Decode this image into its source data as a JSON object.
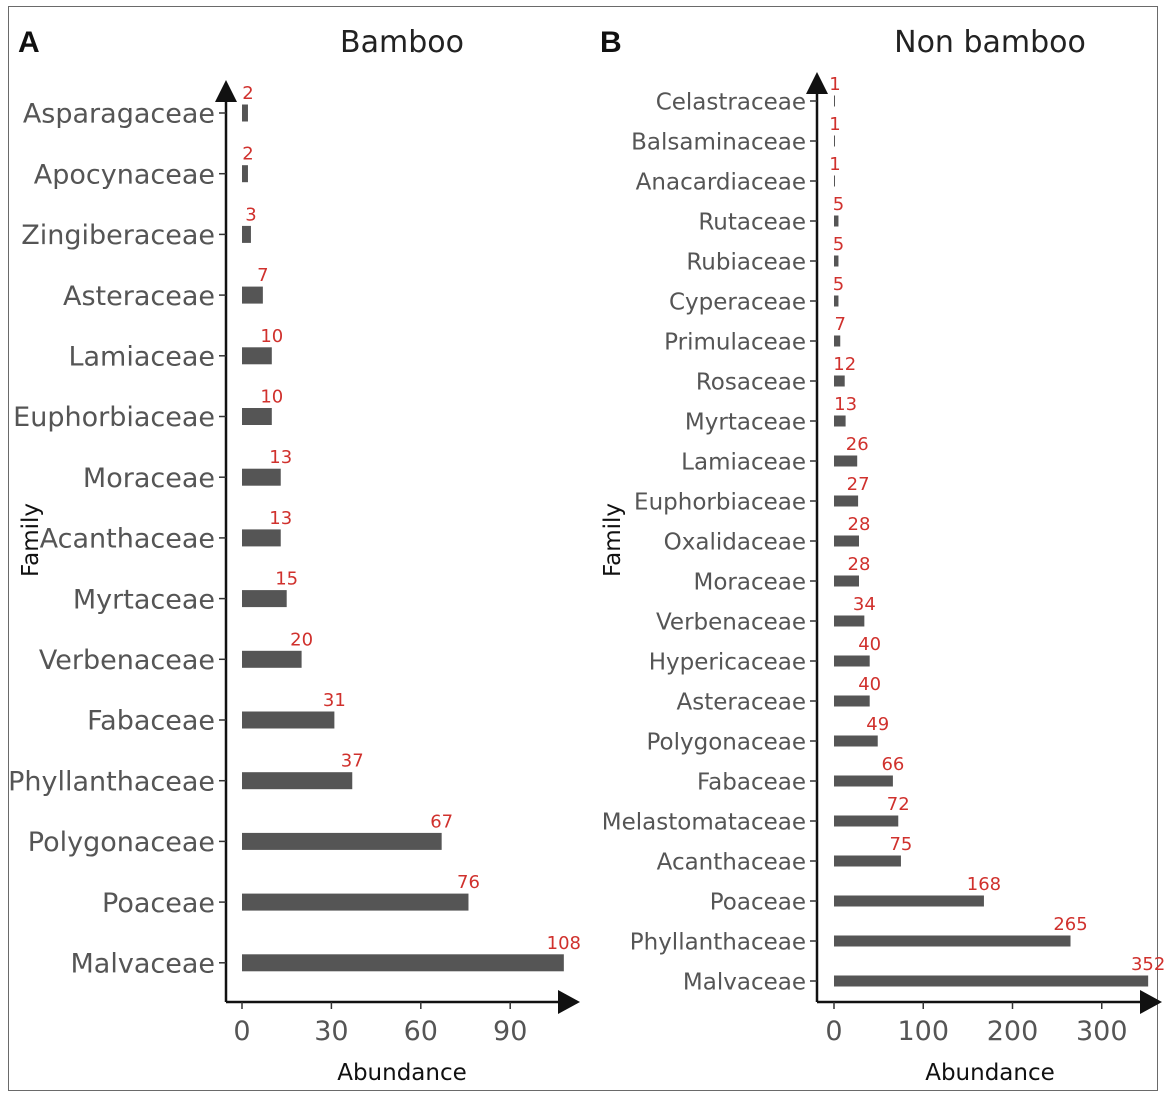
{
  "chart_data": [
    {
      "type": "bar",
      "orientation": "horizontal",
      "panel": "A",
      "title": "Bamboo",
      "xlabel": "Abundance",
      "ylabel": "Family",
      "categories": [
        "Asparagaceae",
        "Apocynaceae",
        "Zingiberaceae",
        "Asteraceae",
        "Lamiaceae",
        "Euphorbiaceae",
        "Moraceae",
        "Acanthaceae",
        "Myrtaceae",
        "Verbenaceae",
        "Fabaceae",
        "Phyllanthaceae",
        "Polygonaceae",
        "Poaceae",
        "Malvaceae"
      ],
      "values": [
        2,
        2,
        3,
        7,
        10,
        10,
        13,
        13,
        15,
        20,
        31,
        37,
        67,
        76,
        108
      ],
      "xticks": [
        0,
        30,
        60,
        90
      ],
      "xlim": [
        -4.5,
        113
      ],
      "bar_color": "#555555",
      "label_color": "#d0312d",
      "grid": false
    },
    {
      "type": "bar",
      "orientation": "horizontal",
      "panel": "B",
      "title": "Non bamboo",
      "xlabel": "Abundance",
      "ylabel": "Family",
      "categories": [
        "Celastraceae",
        "Balsaminaceae",
        "Anacardiaceae",
        "Rutaceae",
        "Rubiaceae",
        "Cyperaceae",
        "Primulaceae",
        "Rosaceae",
        "Myrtaceae",
        "Lamiaceae",
        "Euphorbiaceae",
        "Oxalidaceae",
        "Moraceae",
        "Verbenaceae",
        "Hypericaceae",
        "Asteraceae",
        "Polygonaceae",
        "Fabaceae",
        "Melastomataceae",
        "Acanthaceae",
        "Poaceae",
        "Phyllanthaceae",
        "Malvaceae"
      ],
      "values": [
        1,
        1,
        1,
        5,
        5,
        5,
        7,
        12,
        13,
        26,
        27,
        28,
        28,
        34,
        40,
        40,
        49,
        66,
        72,
        75,
        168,
        265,
        352
      ],
      "value_labels": [
        "1",
        "1",
        "1",
        "5",
        "5",
        "5",
        "7",
        "12",
        "13",
        "26",
        "27",
        "28",
        "28",
        "34",
        "40",
        "40",
        "49",
        "66",
        "72",
        "75",
        "168",
        "265",
        "352"
      ],
      "xticks": [
        0,
        100,
        200,
        300
      ],
      "xlim": [
        -18,
        370
      ],
      "bar_color": "#555555",
      "label_color": "#d0312d",
      "grid": false
    }
  ]
}
